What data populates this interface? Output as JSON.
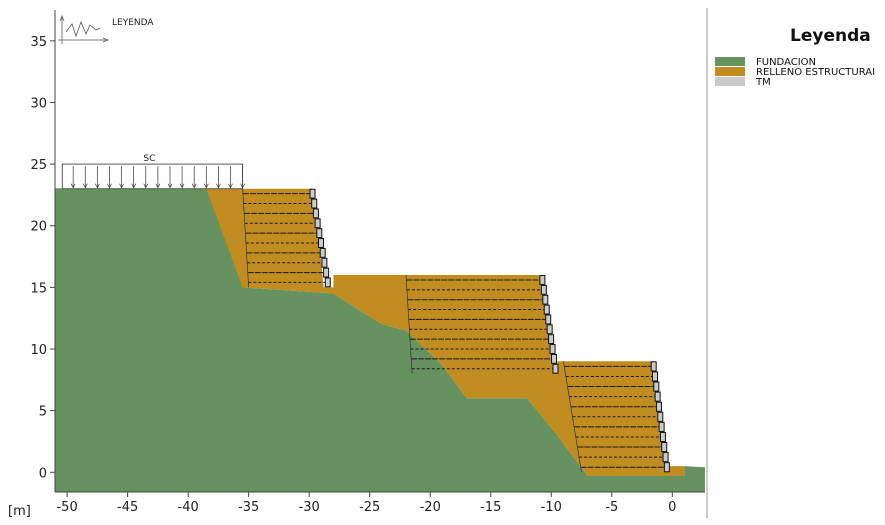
{
  "chart_data": {
    "type": "diagram",
    "xlabel": "[m]",
    "x_ticks": [
      -50,
      -45,
      -40,
      -35,
      -30,
      -25,
      -20,
      -15,
      -10,
      -5,
      0
    ],
    "y_ticks": [
      0,
      5,
      10,
      15,
      20,
      25,
      30,
      35
    ],
    "xlim": [
      -51,
      2.7
    ],
    "ylim": [
      -1.6,
      37.5
    ],
    "load_label": "SC",
    "corner_label": "LEYENDA",
    "legend": {
      "title": "Leyenda",
      "items": [
        {
          "label": "FUNDACION",
          "color": "#66925f"
        },
        {
          "label": "RELLENO ESTRUCTURAI",
          "color": "#c18d21"
        },
        {
          "label": "TM",
          "color": "#cbcbcb"
        }
      ]
    },
    "colors": {
      "foundation": "#66925f",
      "fill": "#c18d21",
      "facing": "#cbcbcb"
    }
  }
}
